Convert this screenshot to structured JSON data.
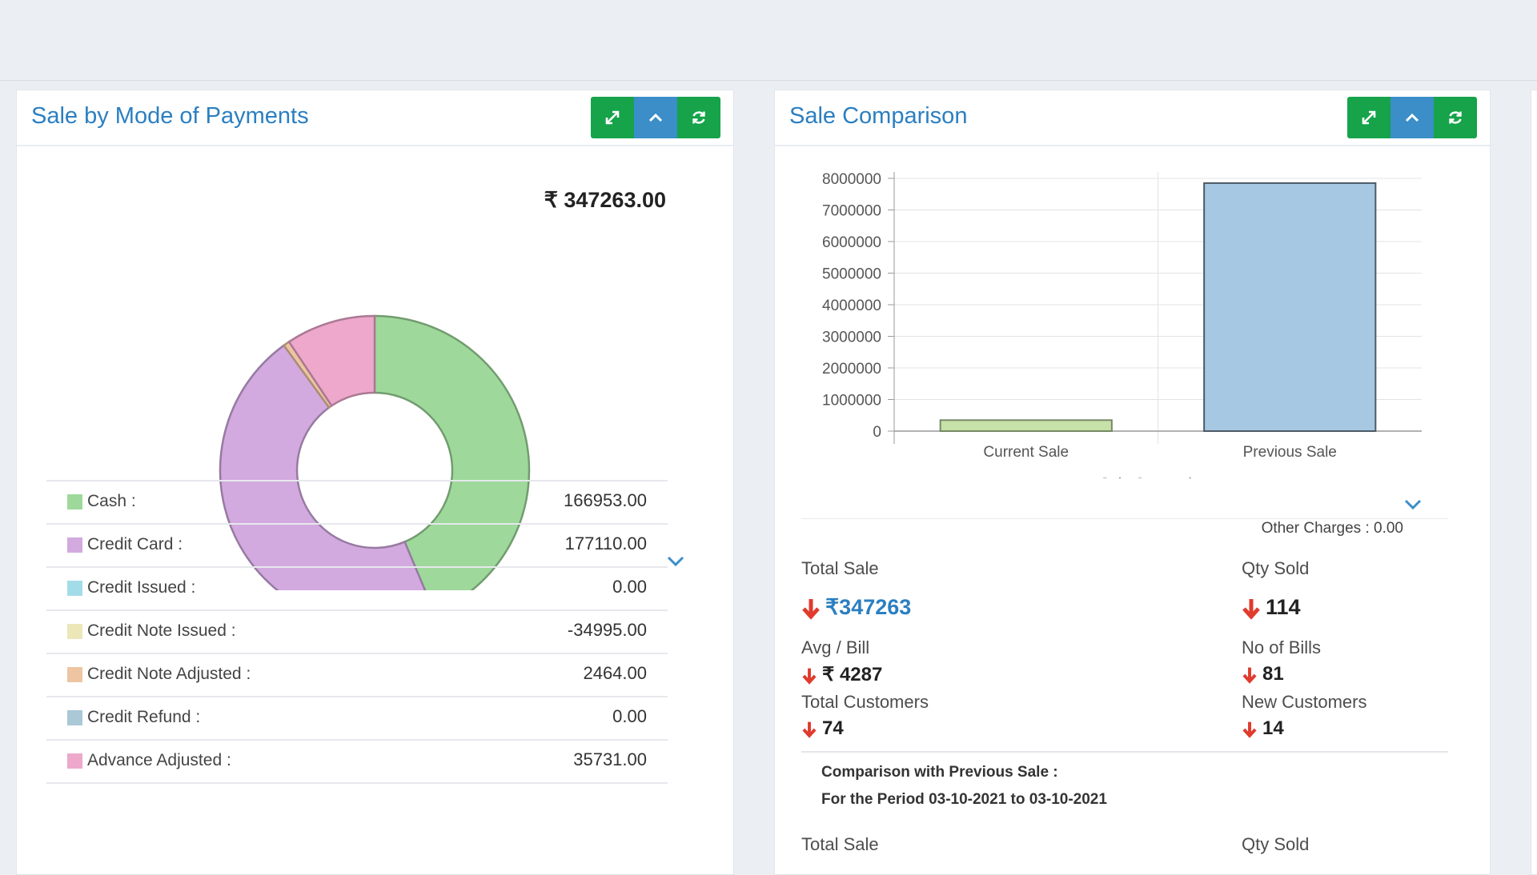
{
  "payment_panel": {
    "title": "Sale by Mode of Payments",
    "total": "₹ 347263.00",
    "legend": [
      {
        "label": "Cash :",
        "value": "166953.00",
        "color": "#9ed99b"
      },
      {
        "label": "Credit Card :",
        "value": "177110.00",
        "color": "#d2aadf"
      },
      {
        "label": "Credit Issued :",
        "value": "0.00",
        "color": "#a3dce9"
      },
      {
        "label": "Credit Note Issued :",
        "value": "-34995.00",
        "color": "#ece7b8"
      },
      {
        "label": "Credit Note Adjusted :",
        "value": "2464.00",
        "color": "#eec5a2"
      },
      {
        "label": "Credit Refund :",
        "value": "0.00",
        "color": "#aac8d6"
      },
      {
        "label": "Advance Adjusted :",
        "value": "35731.00",
        "color": "#eda8cb"
      }
    ]
  },
  "comparison_panel": {
    "title": "Sale Comparison",
    "other_charges": "Other Charges : 0.00",
    "stats": {
      "total_sale_label": "Total Sale",
      "total_sale_value": "₹347263",
      "qty_sold_label": "Qty Sold",
      "qty_sold_value": "114",
      "avg_bill_label": "Avg / Bill",
      "avg_bill_value": "₹ 4287",
      "no_bills_label": "No of Bills",
      "no_bills_value": "81",
      "total_customers_label": "Total Customers",
      "total_customers_value": "74",
      "new_customers_label": "New Customers",
      "new_customers_value": "14"
    },
    "comparison_heading": "Comparison with Previous Sale :",
    "period": "For the Period 03-10-2021 to 03-10-2021",
    "prev_total_sale_label": "Total Sale",
    "prev_qty_sold_label": "Qty Sold"
  },
  "chart_data": [
    {
      "type": "pie",
      "title": "",
      "labels": [
        "Cash",
        "Credit Card",
        "Credit Issued",
        "Credit Note Issued",
        "Credit Note Adjusted",
        "Credit Refund",
        "Advance Adjusted"
      ],
      "values": [
        166953.0,
        177110.0,
        0.0,
        -34995.0,
        2464.0,
        0.0,
        35731.0
      ],
      "colors": [
        "#9ed99b",
        "#d2aadf",
        "#a3dce9",
        "#ece7b8",
        "#eec5a2",
        "#aac8d6",
        "#eda8cb"
      ]
    },
    {
      "type": "bar",
      "title": "",
      "categories": [
        "Current Sale",
        "Previous Sale"
      ],
      "values": [
        347263,
        7850000
      ],
      "xlabel": "Sale Comparison",
      "ylabel": "",
      "ylim": [
        0,
        8000000
      ],
      "yticks": [
        0,
        1000000,
        2000000,
        3000000,
        4000000,
        5000000,
        6000000,
        7000000,
        8000000
      ],
      "colors": [
        "#c6e2a8",
        "#a7c8e3"
      ],
      "grid": true
    }
  ]
}
